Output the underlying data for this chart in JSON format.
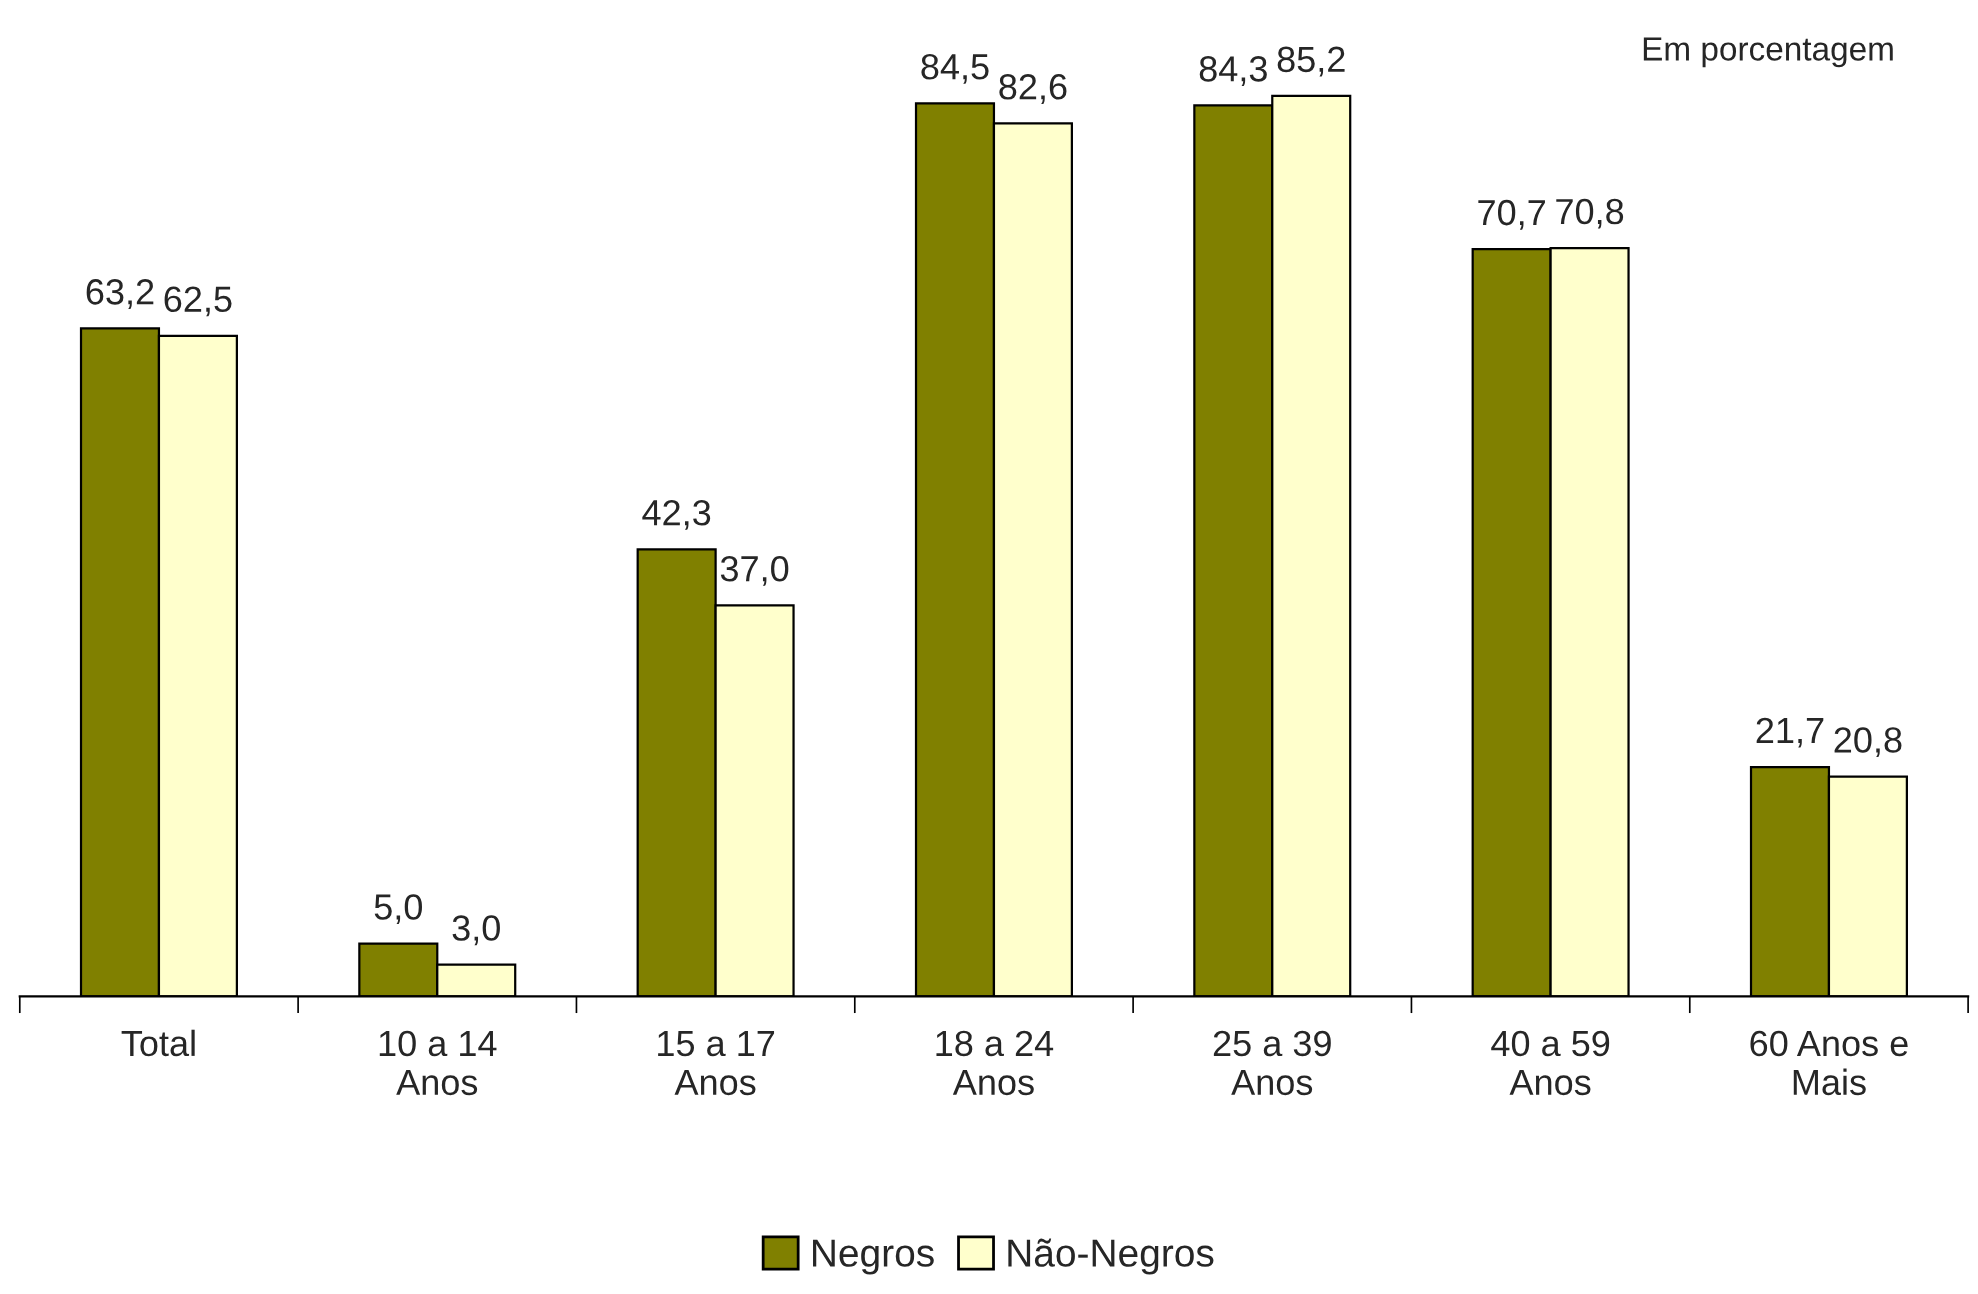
{
  "chart_data": {
    "type": "bar",
    "categories": [
      "Total",
      "10 a 14\nAnos",
      "15 a 17\nAnos",
      "18 a 24\nAnos",
      "25 a 39\nAnos",
      "40 a 59\nAnos",
      "60 Anos e\nMais"
    ],
    "series": [
      {
        "name": "Negros",
        "color": "#808000",
        "values": [
          63.2,
          5.0,
          42.3,
          84.5,
          84.3,
          70.7,
          21.7
        ],
        "value_labels": [
          "63,2",
          "5,0",
          "42,3",
          "84,5",
          "84,3",
          "70,7",
          "21,7"
        ]
      },
      {
        "name": "Não-Negros",
        "color": "#ffffcc",
        "values": [
          62.5,
          3.0,
          37.0,
          82.6,
          85.2,
          70.8,
          20.8
        ],
        "value_labels": [
          "62,5",
          "3,0",
          "37,0",
          "82,6",
          "85,2",
          "70,8",
          "20,8"
        ]
      }
    ],
    "annotations": [
      "Em porcentagem"
    ],
    "legend": "bottom",
    "grid": false
  }
}
